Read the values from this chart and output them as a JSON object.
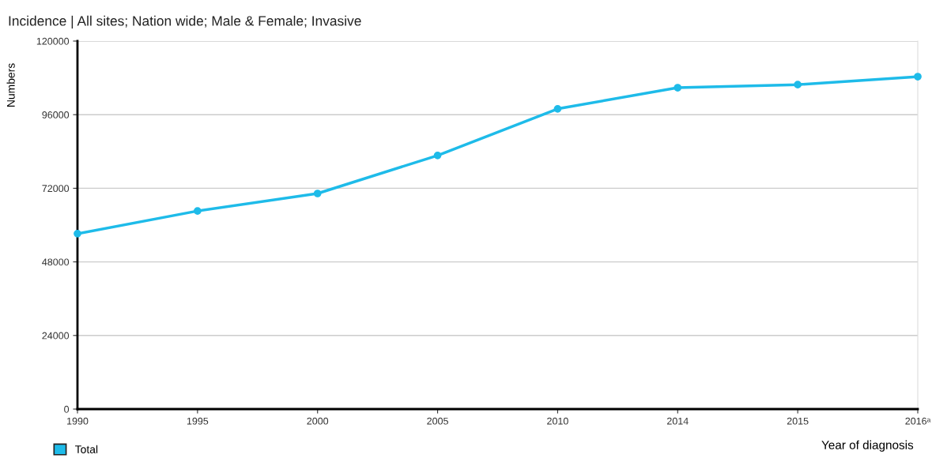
{
  "chart_data": {
    "type": "line",
    "title": "Incidence | All sites; Nation wide; Male & Female; Invasive",
    "xlabel": "Year of diagnosis",
    "ylabel": "Numbers",
    "categories": [
      "1990",
      "1995",
      "2000",
      "2005",
      "2010",
      "2014",
      "2015",
      "2016ᵃ"
    ],
    "series": [
      {
        "name": "Total",
        "color": "#1ebbe9",
        "values": [
          57200,
          64600,
          70300,
          82700,
          97900,
          104800,
          105800,
          108400
        ]
      }
    ],
    "ylim": [
      0,
      120000
    ],
    "yticks": [
      0,
      24000,
      48000,
      72000,
      96000,
      120000
    ],
    "grid": "y",
    "legend": "bottom left",
    "marker": "circle",
    "line_style": "solid"
  }
}
